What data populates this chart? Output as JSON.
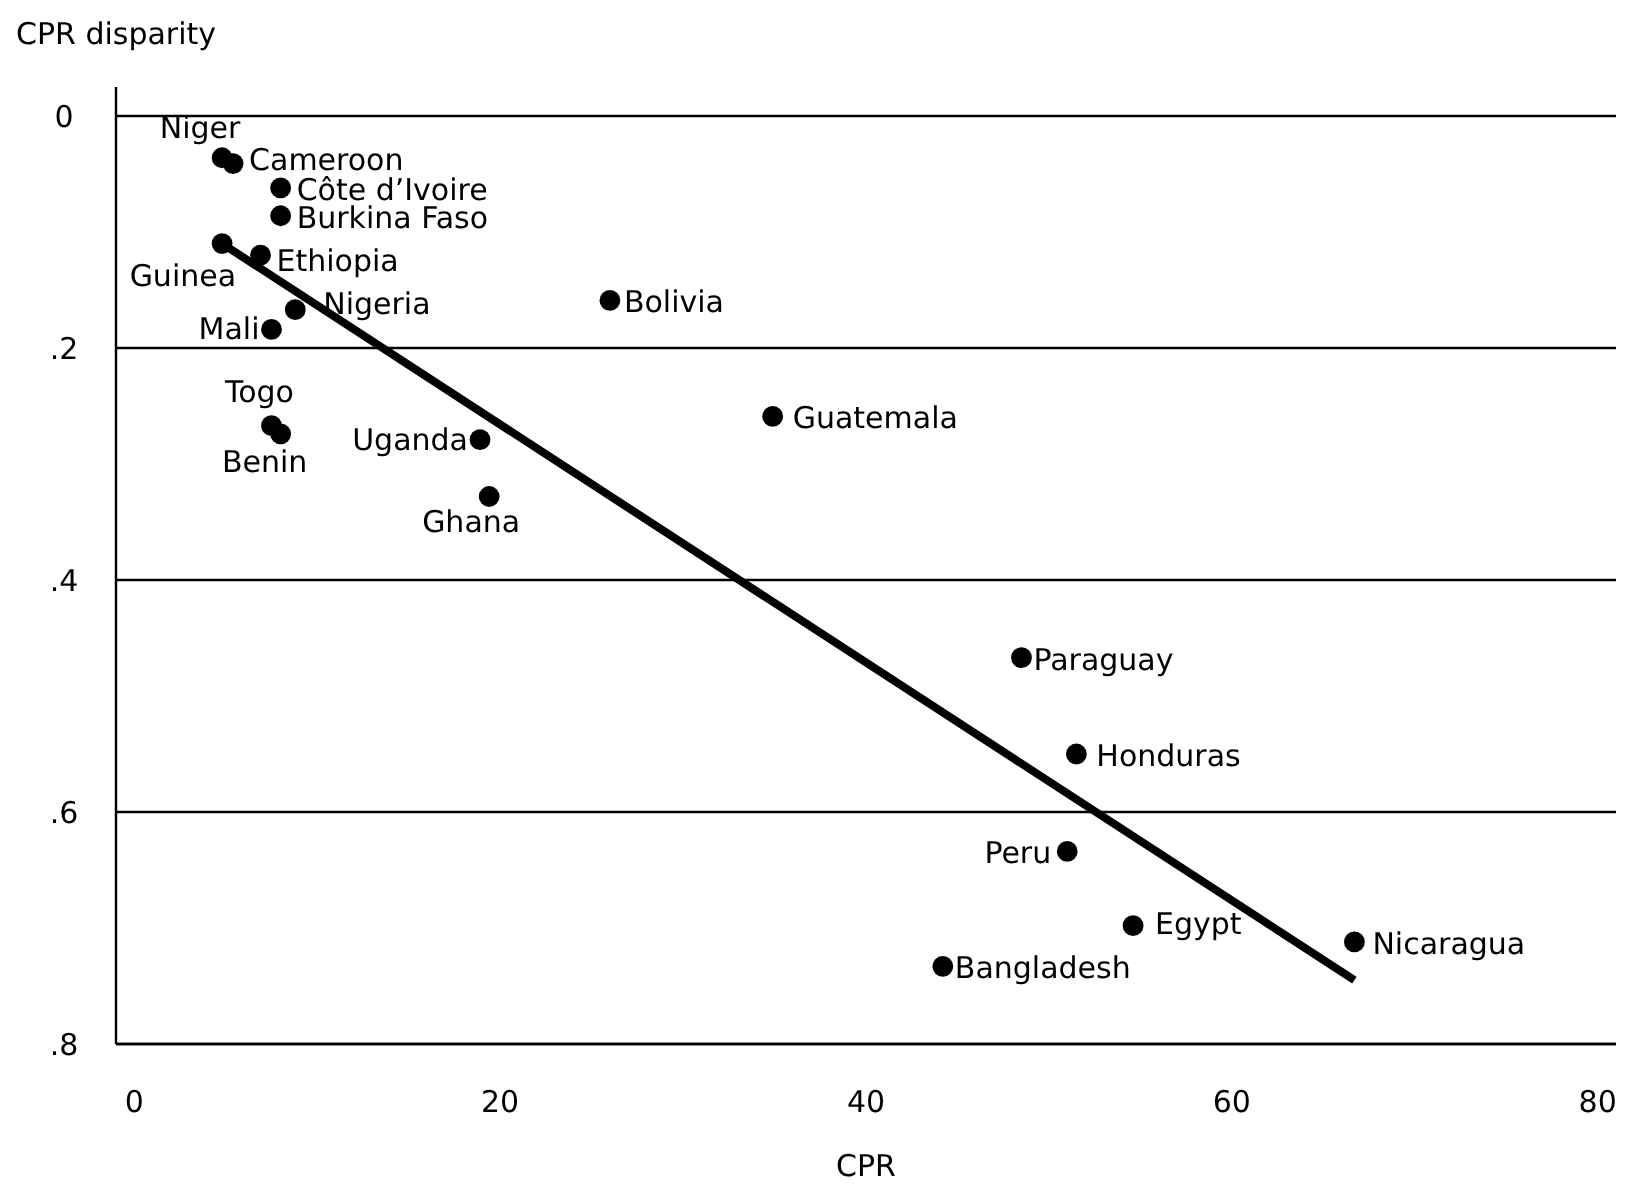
{
  "chart_data": {
    "type": "scatter",
    "xlabel": "CPR",
    "ylabel": "CPR disparity",
    "xlim": [
      -1,
      81
    ],
    "xticks": [
      0,
      20,
      40,
      60,
      80
    ],
    "ylim": [
      0.8,
      -0.025
    ],
    "yticks": [
      {
        "value": 0,
        "label": "0"
      },
      {
        "value": 0.2,
        "label": ".2"
      },
      {
        "value": 0.4,
        "label": ".4"
      },
      {
        "value": 0.6,
        "label": ".6"
      },
      {
        "value": 0.8,
        "label": ".8"
      }
    ],
    "grid": "y",
    "series": [
      {
        "marker": "circle",
        "color": "#000000",
        "x": [
          4.8,
          5.4,
          8.0,
          8.0,
          4.8,
          6.9,
          8.8,
          7.5,
          7.5,
          8.0,
          18.9,
          19.4,
          26.0,
          34.9,
          48.5,
          51.5,
          51.0,
          54.6,
          44.2,
          66.7
        ],
        "values": [
          0.036,
          0.041,
          0.062,
          0.086,
          0.11,
          0.12,
          0.167,
          0.184,
          0.267,
          0.274,
          0.279,
          0.328,
          0.159,
          0.259,
          0.467,
          0.55,
          0.634,
          0.698,
          0.733,
          0.712
        ]
      },
      {
        "type": "line",
        "color": "#000000",
        "x": [
          4.8,
          66.7
        ],
        "values": [
          0.11,
          0.745
        ]
      }
    ],
    "annotations": [
      {
        "text": "Niger",
        "x": 4.8,
        "y": 0.036
      },
      {
        "text": "Cameroon",
        "x": 5.4,
        "y": 0.041
      },
      {
        "text": "Côte d’Ivoire",
        "x": 8.0,
        "y": 0.062
      },
      {
        "text": "Burkina Faso",
        "x": 8.0,
        "y": 0.086
      },
      {
        "text": "Guinea",
        "x": 4.8,
        "y": 0.11
      },
      {
        "text": "Ethiopia",
        "x": 6.9,
        "y": 0.12
      },
      {
        "text": "Nigeria",
        "x": 8.8,
        "y": 0.167
      },
      {
        "text": "Mali",
        "x": 7.5,
        "y": 0.184
      },
      {
        "text": "Togo",
        "x": 7.5,
        "y": 0.267
      },
      {
        "text": "Benin",
        "x": 8.0,
        "y": 0.274
      },
      {
        "text": "Uganda",
        "x": 18.9,
        "y": 0.279
      },
      {
        "text": "Ghana",
        "x": 19.4,
        "y": 0.328
      },
      {
        "text": "Bolivia",
        "x": 26.0,
        "y": 0.159
      },
      {
        "text": "Guatemala",
        "x": 34.9,
        "y": 0.259
      },
      {
        "text": "Paraguay",
        "x": 48.5,
        "y": 0.467
      },
      {
        "text": "Honduras",
        "x": 51.5,
        "y": 0.55
      },
      {
        "text": "Peru",
        "x": 51.0,
        "y": 0.634
      },
      {
        "text": "Egypt",
        "x": 54.6,
        "y": 0.698
      },
      {
        "text": "Bangladesh",
        "x": 44.2,
        "y": 0.733
      },
      {
        "text": "Nicaragua",
        "x": 66.7,
        "y": 0.712
      }
    ]
  }
}
